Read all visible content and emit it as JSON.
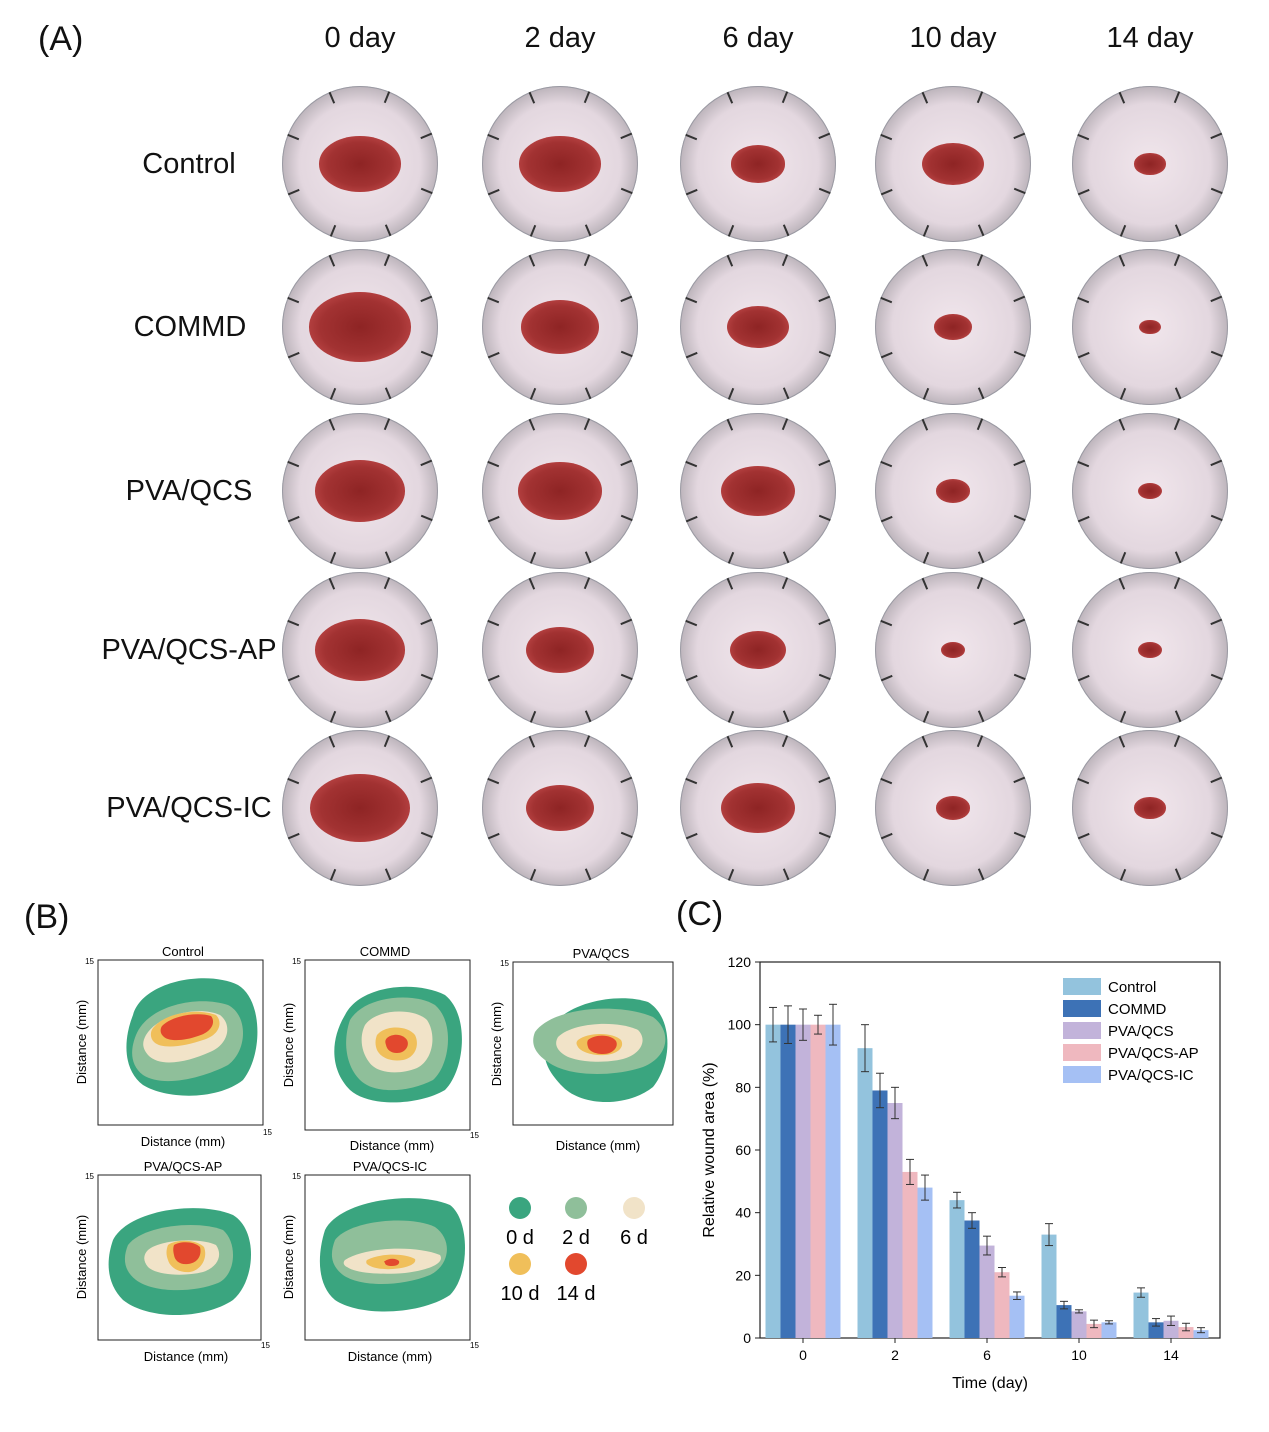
{
  "panelA": {
    "label": "(A)",
    "days": [
      "0 day",
      "2 day",
      "6 day",
      "10 day",
      "14 day"
    ],
    "groups": [
      "Control",
      "COMMD",
      "PVA/QCS",
      "PVA/QCS-AP",
      "PVA/QCS-IC"
    ],
    "wound_rel_size": [
      [
        0.52,
        0.52,
        0.35,
        0.4,
        0.2
      ],
      [
        0.66,
        0.5,
        0.4,
        0.24,
        0.14
      ],
      [
        0.58,
        0.54,
        0.48,
        0.22,
        0.16
      ],
      [
        0.58,
        0.44,
        0.36,
        0.15,
        0.15
      ],
      [
        0.64,
        0.44,
        0.48,
        0.22,
        0.2
      ]
    ]
  },
  "panelB": {
    "label": "(B)",
    "plots": [
      {
        "title": "Control",
        "ylabel": "Distance (mm)",
        "xlabel": "Distance (mm)",
        "ymax": "15",
        "xmax": "15"
      },
      {
        "title": "COMMD",
        "ylabel": "Distance (mm)",
        "xlabel": "Distance (mm)",
        "ymax": "15",
        "xmax": "15"
      },
      {
        "title": "PVA/QCS",
        "ylabel": "Distance (mm)",
        "xlabel": "Distance (mm)",
        "ymax": "15",
        "xmax": "15"
      },
      {
        "title": "PVA/QCS-AP",
        "ylabel": "Distance (mm)",
        "xlabel": "Distance (mm)",
        "ymax": "15",
        "xmax": "15"
      },
      {
        "title": "PVA/QCS-IC",
        "ylabel": "Distance (mm)",
        "xlabel": "Distance (mm)",
        "ymax": "15",
        "xmax": "15"
      }
    ],
    "legend": [
      {
        "label": "0 d",
        "color": "#3aa57f"
      },
      {
        "label": "2 d",
        "color": "#8fbf9a"
      },
      {
        "label": "6 d",
        "color": "#f1e3c8"
      },
      {
        "label": "10 d",
        "color": "#f0bf5a"
      },
      {
        "label": "14 d",
        "color": "#e2482e"
      }
    ]
  },
  "panelC": {
    "label": "(C)"
  },
  "chart_data": {
    "type": "bar",
    "title": "",
    "xlabel": "Time (day)",
    "ylabel": "Relative wound area (%)",
    "ylim": [
      0,
      120
    ],
    "yticks": [
      0,
      20,
      40,
      60,
      80,
      100,
      120
    ],
    "categories": [
      "0",
      "2",
      "6",
      "10",
      "14"
    ],
    "legend_position": "top-right",
    "series": [
      {
        "name": "Control",
        "color": "#93c3dd",
        "values": [
          100,
          92.5,
          44,
          33,
          14.5
        ],
        "errors": [
          5.5,
          7.5,
          2.5,
          3.5,
          1.5
        ]
      },
      {
        "name": "COMMD",
        "color": "#3d72b6",
        "values": [
          100,
          79,
          37.5,
          10.5,
          5
        ],
        "errors": [
          6,
          5.5,
          2.5,
          1.2,
          1.2
        ]
      },
      {
        "name": "PVA/QCS",
        "color": "#c2b3da",
        "values": [
          100,
          75,
          29.5,
          8.5,
          5.5
        ],
        "errors": [
          5,
          5,
          3,
          0.5,
          1.5
        ]
      },
      {
        "name": "PVA/QCS-AP",
        "color": "#efb8bf",
        "values": [
          100,
          53,
          21,
          4.5,
          3.5
        ],
        "errors": [
          3,
          4,
          1.5,
          1.2,
          1.2
        ]
      },
      {
        "name": "PVA/QCS-IC",
        "color": "#a5c0f4",
        "values": [
          100,
          48,
          13.5,
          5,
          2.5
        ],
        "errors": [
          6.5,
          4,
          1.2,
          0.5,
          0.8
        ]
      }
    ]
  }
}
